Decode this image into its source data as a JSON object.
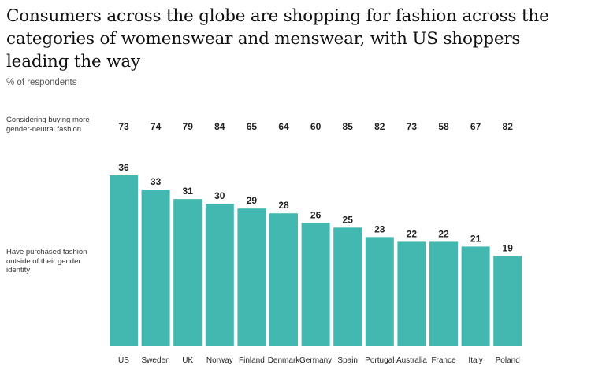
{
  "header": {
    "title": "Consumers across the globe are shopping for fashion across the categories of womenswear and menswear, with US shoppers leading the way",
    "subtitle": "% of respondents"
  },
  "rows": {
    "top_label": "Considering buying more gender-neutral fashion",
    "bar_label": "Have purchased fashion outside of their gender identity"
  },
  "chart_data": {
    "type": "bar",
    "categories": [
      "US",
      "Sweden",
      "UK",
      "Norway",
      "Finland",
      "Denmark",
      "Germany",
      "Spain",
      "Portugal",
      "Australia",
      "France",
      "Italy",
      "Poland"
    ],
    "series": [
      {
        "name": "Have purchased fashion outside of their gender identity",
        "values": [
          36,
          33,
          31,
          30,
          29,
          28,
          26,
          25,
          23,
          22,
          22,
          21,
          19
        ]
      },
      {
        "name": "Considering buying more gender-neutral fashion",
        "values": [
          73,
          74,
          79,
          84,
          65,
          64,
          60,
          85,
          82,
          73,
          58,
          67,
          82
        ]
      }
    ],
    "ylim": [
      0,
      36
    ],
    "bar_color": "#43b8b0",
    "grid": false
  }
}
